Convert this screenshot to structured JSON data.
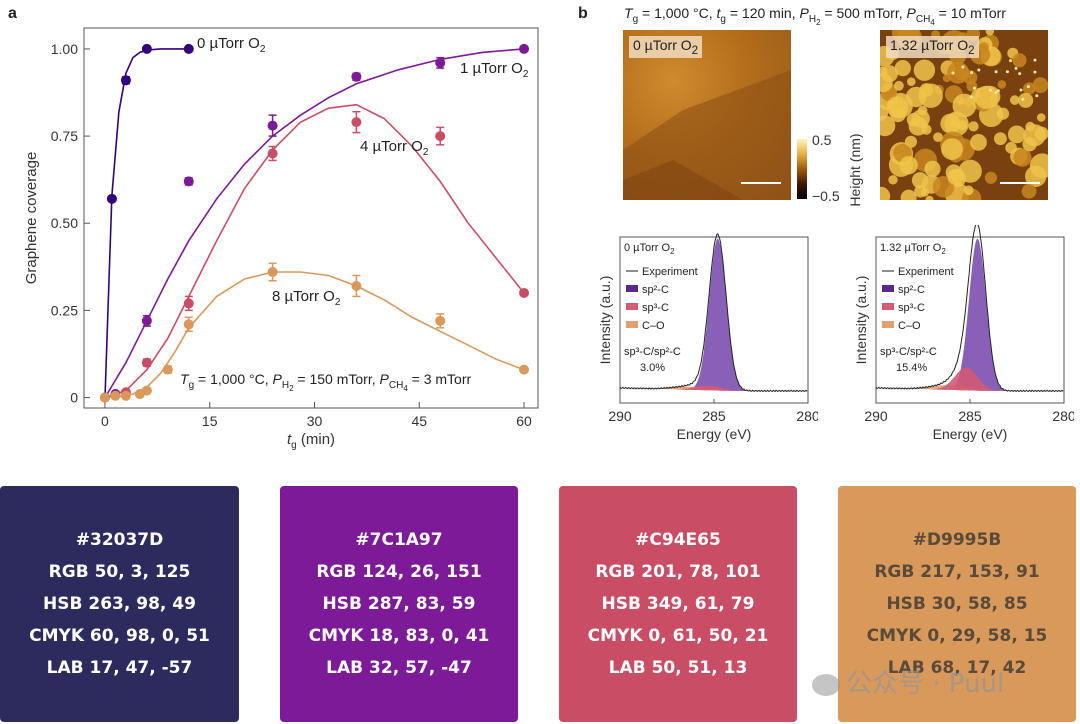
{
  "panel_a": {
    "letter": "a",
    "chart_data": {
      "type": "scatter",
      "ylabel": "Graphene coverage",
      "xlabel_main": "t",
      "xlabel_sub": "g",
      "xlabel_unit": " (min)",
      "xlim": [
        -3,
        62
      ],
      "ylim": [
        -0.03,
        1.06
      ],
      "xticks": [
        0,
        15,
        30,
        45,
        60
      ],
      "yticks": [
        0,
        0.25,
        0.5,
        0.75,
        1.0
      ],
      "ytick_labels": [
        "0",
        "0.25",
        "0.50",
        "0.75",
        "1.00"
      ],
      "series": [
        {
          "name": "0 µTorr O2",
          "label_prefix": "0 µTorr O",
          "label_sub": "2",
          "color": "#32037D",
          "x": [
            0,
            1,
            3,
            6,
            12
          ],
          "y": [
            0,
            0.57,
            0.91,
            1.0,
            1.0
          ],
          "err": [
            0,
            0,
            0.01,
            0.005,
            0.005
          ],
          "curve_x": [
            0,
            1,
            2,
            3,
            4,
            5,
            6,
            8,
            10,
            12
          ],
          "curve_y": [
            0,
            0.58,
            0.82,
            0.93,
            0.975,
            0.99,
            0.997,
            1.0,
            1.0,
            1.0
          ]
        },
        {
          "name": "1 µTorr O2",
          "label_prefix": "1 µTorr O",
          "label_sub": "2",
          "color": "#7C1A97",
          "x": [
            1.5,
            6,
            12,
            24,
            36,
            48,
            60
          ],
          "y": [
            0.01,
            0.22,
            0.62,
            0.78,
            0.92,
            0.96,
            1.0
          ],
          "err": [
            0,
            0.015,
            0.01,
            0.03,
            0.01,
            0.015,
            0.005
          ],
          "curve_x": [
            0,
            3,
            6,
            9,
            12,
            16,
            20,
            24,
            28,
            32,
            36,
            42,
            48,
            54,
            60
          ],
          "curve_y": [
            0,
            0.1,
            0.22,
            0.34,
            0.45,
            0.57,
            0.67,
            0.75,
            0.81,
            0.86,
            0.9,
            0.94,
            0.97,
            0.99,
            1.0
          ]
        },
        {
          "name": "4 µTorr O2",
          "label_prefix": "4 µTorr O",
          "label_sub": "2",
          "color": "#C94E65",
          "x": [
            3,
            6,
            12,
            24,
            36,
            48,
            60
          ],
          "y": [
            0.015,
            0.1,
            0.27,
            0.7,
            0.79,
            0.75,
            0.3
          ],
          "err": [
            0,
            0.01,
            0.02,
            0.02,
            0.03,
            0.025,
            0.005
          ],
          "curve_x": [
            0,
            3,
            6,
            9,
            12,
            16,
            20,
            24,
            28,
            32,
            36,
            40,
            44,
            48,
            52,
            56,
            60
          ],
          "curve_y": [
            0,
            0.02,
            0.08,
            0.17,
            0.29,
            0.45,
            0.6,
            0.71,
            0.79,
            0.83,
            0.84,
            0.8,
            0.72,
            0.62,
            0.5,
            0.4,
            0.3
          ]
        },
        {
          "name": "8 µTorr O2",
          "label_prefix": "8 µTorr O",
          "label_sub": "2",
          "color": "#D9995B",
          "x": [
            0,
            1.5,
            3,
            5,
            6,
            9,
            12,
            24,
            36,
            48,
            60
          ],
          "y": [
            0,
            0.005,
            0.005,
            0.01,
            0.02,
            0.08,
            0.21,
            0.36,
            0.32,
            0.22,
            0.08
          ],
          "err": [
            0,
            0,
            0,
            0,
            0,
            0.01,
            0.02,
            0.025,
            0.03,
            0.02,
            0.005
          ],
          "curve_x": [
            0,
            2,
            4,
            6,
            8,
            10,
            12,
            16,
            20,
            24,
            28,
            32,
            36,
            40,
            44,
            48,
            52,
            56,
            60
          ],
          "curve_y": [
            0,
            0.002,
            0.01,
            0.03,
            0.07,
            0.13,
            0.2,
            0.29,
            0.34,
            0.36,
            0.36,
            0.35,
            0.32,
            0.28,
            0.23,
            0.19,
            0.15,
            0.11,
            0.08
          ]
        }
      ],
      "condition": {
        "t": "T",
        "t_sub": "g",
        "t_val": " = 1,000 °C, ",
        "p1": "P",
        "p1_sub": "H",
        "p1_subsub": "2",
        "p1_val": " = 150 mTorr, ",
        "p2": "P",
        "p2_sub": "CH",
        "p2_subsub": "4",
        "p2_val": " = 3 mTorr"
      }
    }
  },
  "panel_b": {
    "letter": "b",
    "condition": {
      "t": "T",
      "t_sub": "g",
      "t_val": " = 1,000 °C, ",
      "tg": "t",
      "tg_sub": "g",
      "tg_val": " = 120 min, ",
      "p1": "P",
      "p1_sub": "H",
      "p1_subsub": "2",
      "p1_val": " = 500 mTorr, ",
      "p2": "P",
      "p2_sub": "CH",
      "p2_subsub": "4",
      "p2_val": " = 10 mTorr"
    },
    "images": [
      {
        "label_prefix": "0 µTorr O",
        "label_sub": "2"
      },
      {
        "label_prefix": "1.32 µTorr O",
        "label_sub": "2"
      }
    ],
    "colorbar": {
      "max": "0.5",
      "min": "−0.5",
      "label": "Height (nm)"
    },
    "spectra": [
      {
        "chart_data": {
          "type": "area",
          "title_prefix": "0 µTorr O",
          "title_sub": "2",
          "xlabel": "Energy (eV)",
          "ylabel": "Intensity (a.u.)",
          "xlim": [
            290,
            280
          ],
          "xticks": [
            290,
            285,
            280
          ],
          "legend": [
            "Experiment",
            "sp²-C",
            "sp³-C",
            "C–O"
          ],
          "ratio_label": "sp³-C/sp²-C",
          "ratio_value": "3.0%",
          "sp2_center": 284.8,
          "sp2_height": 1.0,
          "sp2_width": 0.45,
          "sp3_center": 285.3,
          "sp3_height": 0.03,
          "sp3_width": 0.7,
          "co_center": 286.3,
          "co_height": 0.02,
          "co_width": 0.9
        }
      },
      {
        "chart_data": {
          "type": "area",
          "title_prefix": "1.32 µTorr O",
          "title_sub": "2",
          "xlabel": "Energy (eV)",
          "ylabel": "Intensity (a.u.)",
          "xlim": [
            290,
            280
          ],
          "xticks": [
            290,
            285,
            280
          ],
          "legend": [
            "Experiment",
            "sp²-C",
            "sp³-C",
            "C–O"
          ],
          "ratio_label": "sp³-C/sp²-C",
          "ratio_value": "15.4%",
          "sp2_center": 284.6,
          "sp2_height": 1.0,
          "sp2_width": 0.45,
          "sp3_center": 285.2,
          "sp3_height": 0.15,
          "sp3_width": 0.6,
          "co_center": 286.2,
          "co_height": 0.03,
          "co_width": 0.9
        }
      }
    ]
  },
  "swatches": [
    {
      "hex": "#32037D",
      "rgb": "RGB 50, 3, 125",
      "hsb": "HSB 263, 98, 49",
      "cmyk": "CMYK 60, 98, 0, 51",
      "lab": "LAB 17, 47, -57",
      "bg": "#2D2A5E",
      "fg": "#FFFFFF"
    },
    {
      "hex": "#7C1A97",
      "rgb": "RGB 124, 26, 151",
      "hsb": "HSB 287, 83, 59",
      "cmyk": "CMYK 18, 83, 0, 41",
      "lab": "LAB 32, 57, -47",
      "bg": "#7C1A97",
      "fg": "#FFFFFF"
    },
    {
      "hex": "#C94E65",
      "rgb": "RGB 201, 78, 101",
      "hsb": "HSB 349, 61, 79",
      "cmyk": "CMYK 0, 61, 50, 21",
      "lab": "LAB 50, 51, 13",
      "bg": "#C94E65",
      "fg": "#FFFFFF"
    },
    {
      "hex": "#D9995B",
      "rgb": "RGB 217, 153, 91",
      "hsb": "HSB 30, 58, 85",
      "cmyk": "CMYK 0, 29, 58, 15",
      "lab": "LAB 68, 17, 42",
      "bg": "#D9995B",
      "fg": "#5A4A3A"
    }
  ],
  "watermark": "公众号 · Puul"
}
